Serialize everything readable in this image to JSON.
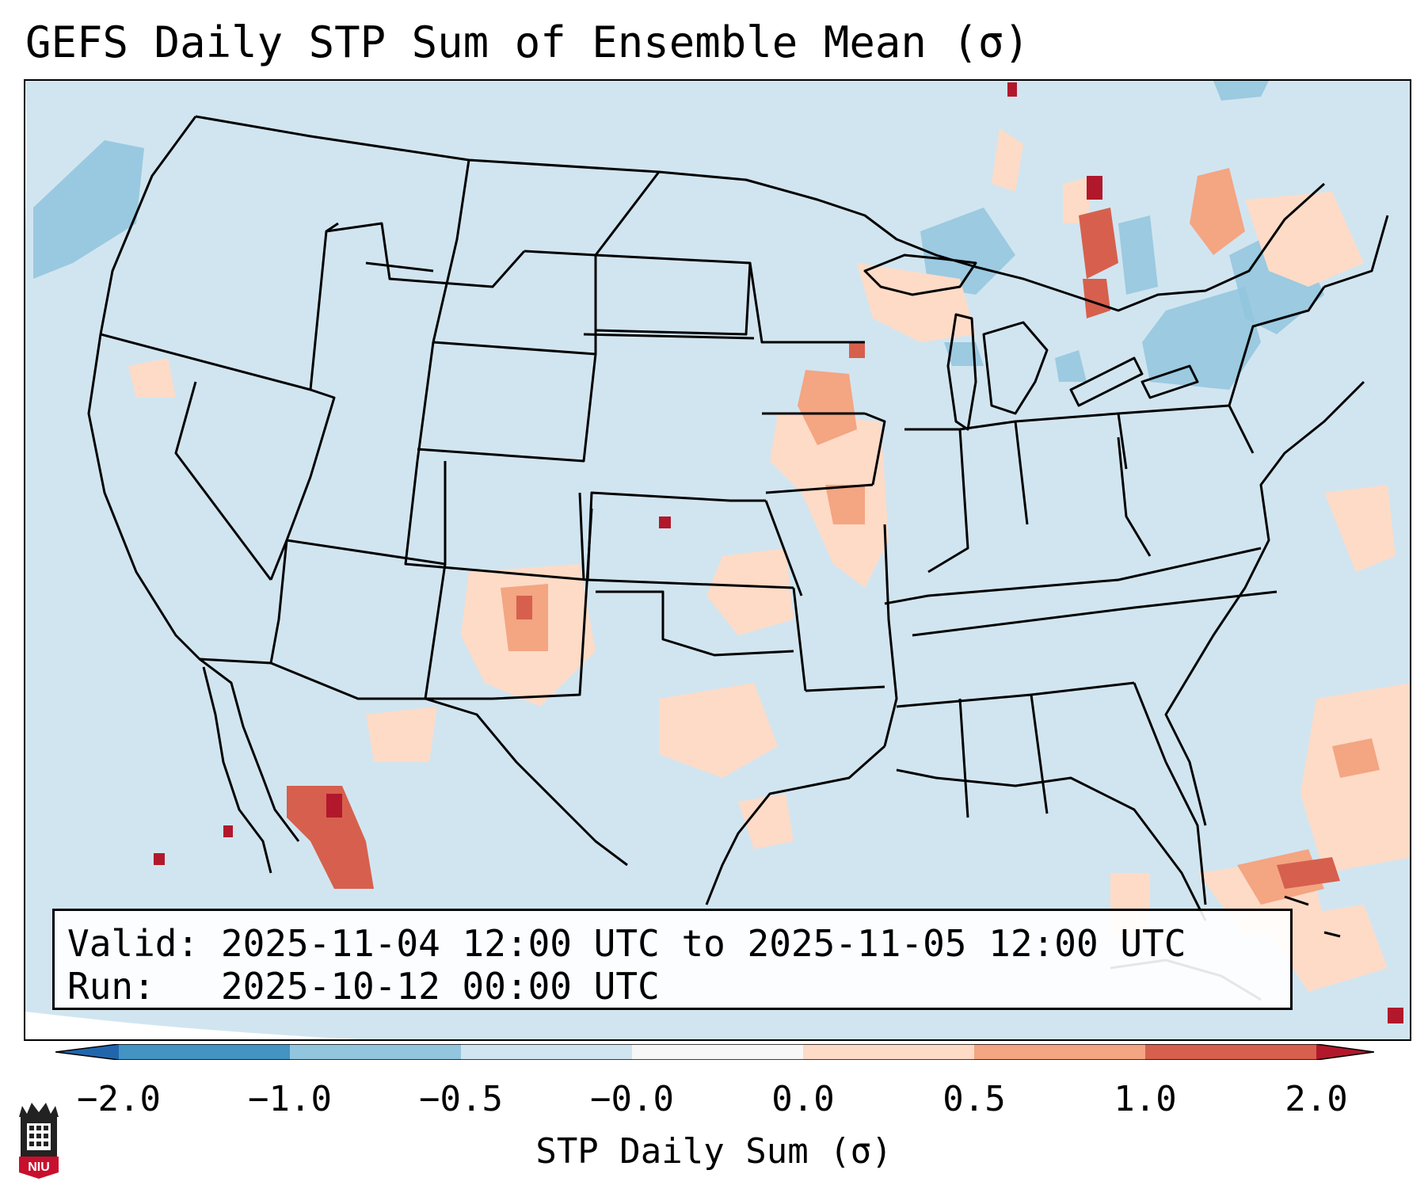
{
  "title": "GEFS Daily STP Sum of Ensemble Mean (σ)",
  "info": {
    "valid_label": "Valid:",
    "valid_value": "2025-11-04 12:00 UTC to 2025-11-05 12:00 UTC",
    "run_label": "Run:",
    "run_value": "2025-10-12 00:00 UTC"
  },
  "colorbar": {
    "label": "STP Daily Sum (σ)",
    "ticks": [
      "−2.0",
      "−1.0",
      "−0.5",
      "−0.0",
      "0.0",
      "0.5",
      "1.0",
      "2.0"
    ],
    "colors": {
      "lt_-2": "#2166ac",
      "-2_-1": "#4393c3",
      "-1_-0.5": "#92c5de",
      "-0.5_0": "#d1e5f0",
      "0_0": "#f7f7f7",
      "0_0.5": "#fddbc7",
      "0.5_1": "#f4a582",
      "1_2": "#d6604d",
      "gt_2": "#b2182b"
    }
  },
  "logo": {
    "text": "NIU"
  },
  "features": [
    {
      "region": "Iowa / Wisconsin",
      "level": "0.5 to 1.0"
    },
    {
      "region": "Upper Michigan / Ontario",
      "level": "1.0 to 2.0"
    },
    {
      "region": "Quebec",
      "level": "0.5 to 1.0"
    },
    {
      "region": "Eastern New Mexico",
      "level": "0.5 to 1.0"
    },
    {
      "region": "Northwest Mexico (Sinaloa)",
      "level": "1.0 to 2.0"
    },
    {
      "region": "Bahamas / Western Atlantic",
      "level": "0.5 to 1.0"
    }
  ]
}
